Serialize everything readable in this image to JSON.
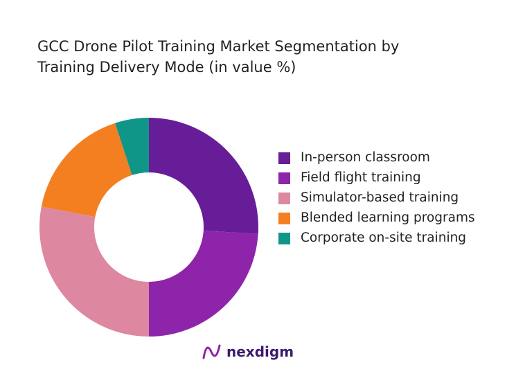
{
  "chart_data": {
    "type": "donut",
    "title": "GCC Drone Pilot Training Market Segmentation by Training Delivery Mode (in value %)",
    "categories": [
      "In-person classroom",
      "Field flight training",
      "Simulator-based training",
      "Blended learning programs",
      "Corporate on-site training"
    ],
    "values": [
      26,
      24,
      28,
      17,
      5
    ],
    "colors": [
      "#671d98",
      "#8e24aa",
      "#dd88a0",
      "#f47f20",
      "#0f9688"
    ],
    "legend": "right"
  },
  "brand": "nexdigm"
}
